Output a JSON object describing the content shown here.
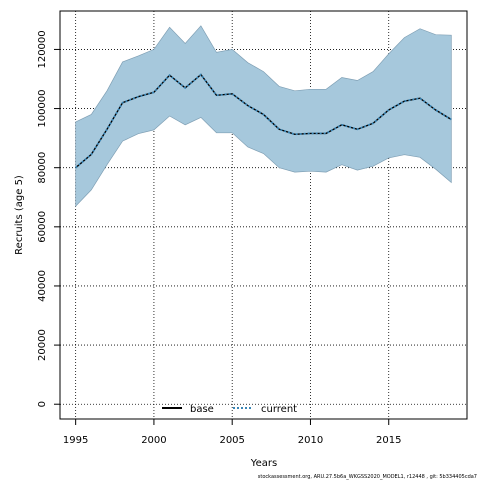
{
  "chart_data": {
    "type": "line",
    "title": "",
    "xlabel": "Years",
    "ylabel": "Recruits (age 5)",
    "xlim": [
      1994,
      2020
    ],
    "ylim": [
      -5000,
      133000
    ],
    "x_ticks": [
      1995,
      2000,
      2005,
      2010,
      2015
    ],
    "x_tick_labels": [
      "1995",
      "2000",
      "2005",
      "2010",
      "2015"
    ],
    "y_ticks": [
      0,
      20000,
      40000,
      60000,
      80000,
      100000,
      120000
    ],
    "y_tick_labels": [
      "0",
      "20000",
      "40000",
      "60000",
      "80000",
      "100000",
      "120000"
    ],
    "grid": true,
    "band_color": "#a6c8dc",
    "band_edge_color": "#7f9fb4",
    "x": [
      1995,
      1996,
      1997,
      1998,
      1999,
      2000,
      2001,
      2002,
      2003,
      2004,
      2005,
      2006,
      2007,
      2008,
      2009,
      2010,
      2011,
      2012,
      2013,
      2014,
      2015,
      2016,
      2017,
      2018,
      2019
    ],
    "band_upper": [
      95500,
      98000,
      106000,
      115800,
      117800,
      120000,
      127500,
      122000,
      128000,
      119000,
      120000,
      115500,
      112500,
      107500,
      106000,
      106500,
      106500,
      110500,
      109500,
      112500,
      118500,
      124000,
      127000,
      125000,
      124800
    ],
    "band_lower": [
      67000,
      72500,
      81000,
      89000,
      91500,
      92800,
      97500,
      94500,
      97000,
      91800,
      91800,
      87000,
      84800,
      80000,
      78500,
      78800,
      78500,
      81000,
      79200,
      80500,
      83300,
      84400,
      83500,
      79500,
      75000
    ],
    "series": [
      {
        "name": "base",
        "style": "solid",
        "color": "#000000",
        "values": [
          80000,
          84500,
          93000,
          102000,
          104000,
          105500,
          111300,
          107000,
          111500,
          104500,
          105000,
          101000,
          98000,
          93000,
          91300,
          91600,
          91600,
          94500,
          93000,
          95000,
          99500,
          102500,
          103500,
          99500,
          96300
        ]
      },
      {
        "name": "current",
        "style": "dotted",
        "color": "#3a86b6",
        "values": [
          80000,
          84500,
          93000,
          102000,
          104000,
          105500,
          111300,
          107000,
          111500,
          104500,
          105000,
          101000,
          98000,
          93000,
          91300,
          91600,
          91600,
          94500,
          93000,
          95000,
          99500,
          102500,
          103500,
          99500,
          96300
        ]
      }
    ],
    "legend": {
      "placement": "bottom-center",
      "entries": [
        "base",
        "current"
      ]
    },
    "footnote": "stockassessment.org, ARU.27.5b6a_WKGSS2020_MODEL1, r12448 , git: 5b334405cda7"
  }
}
